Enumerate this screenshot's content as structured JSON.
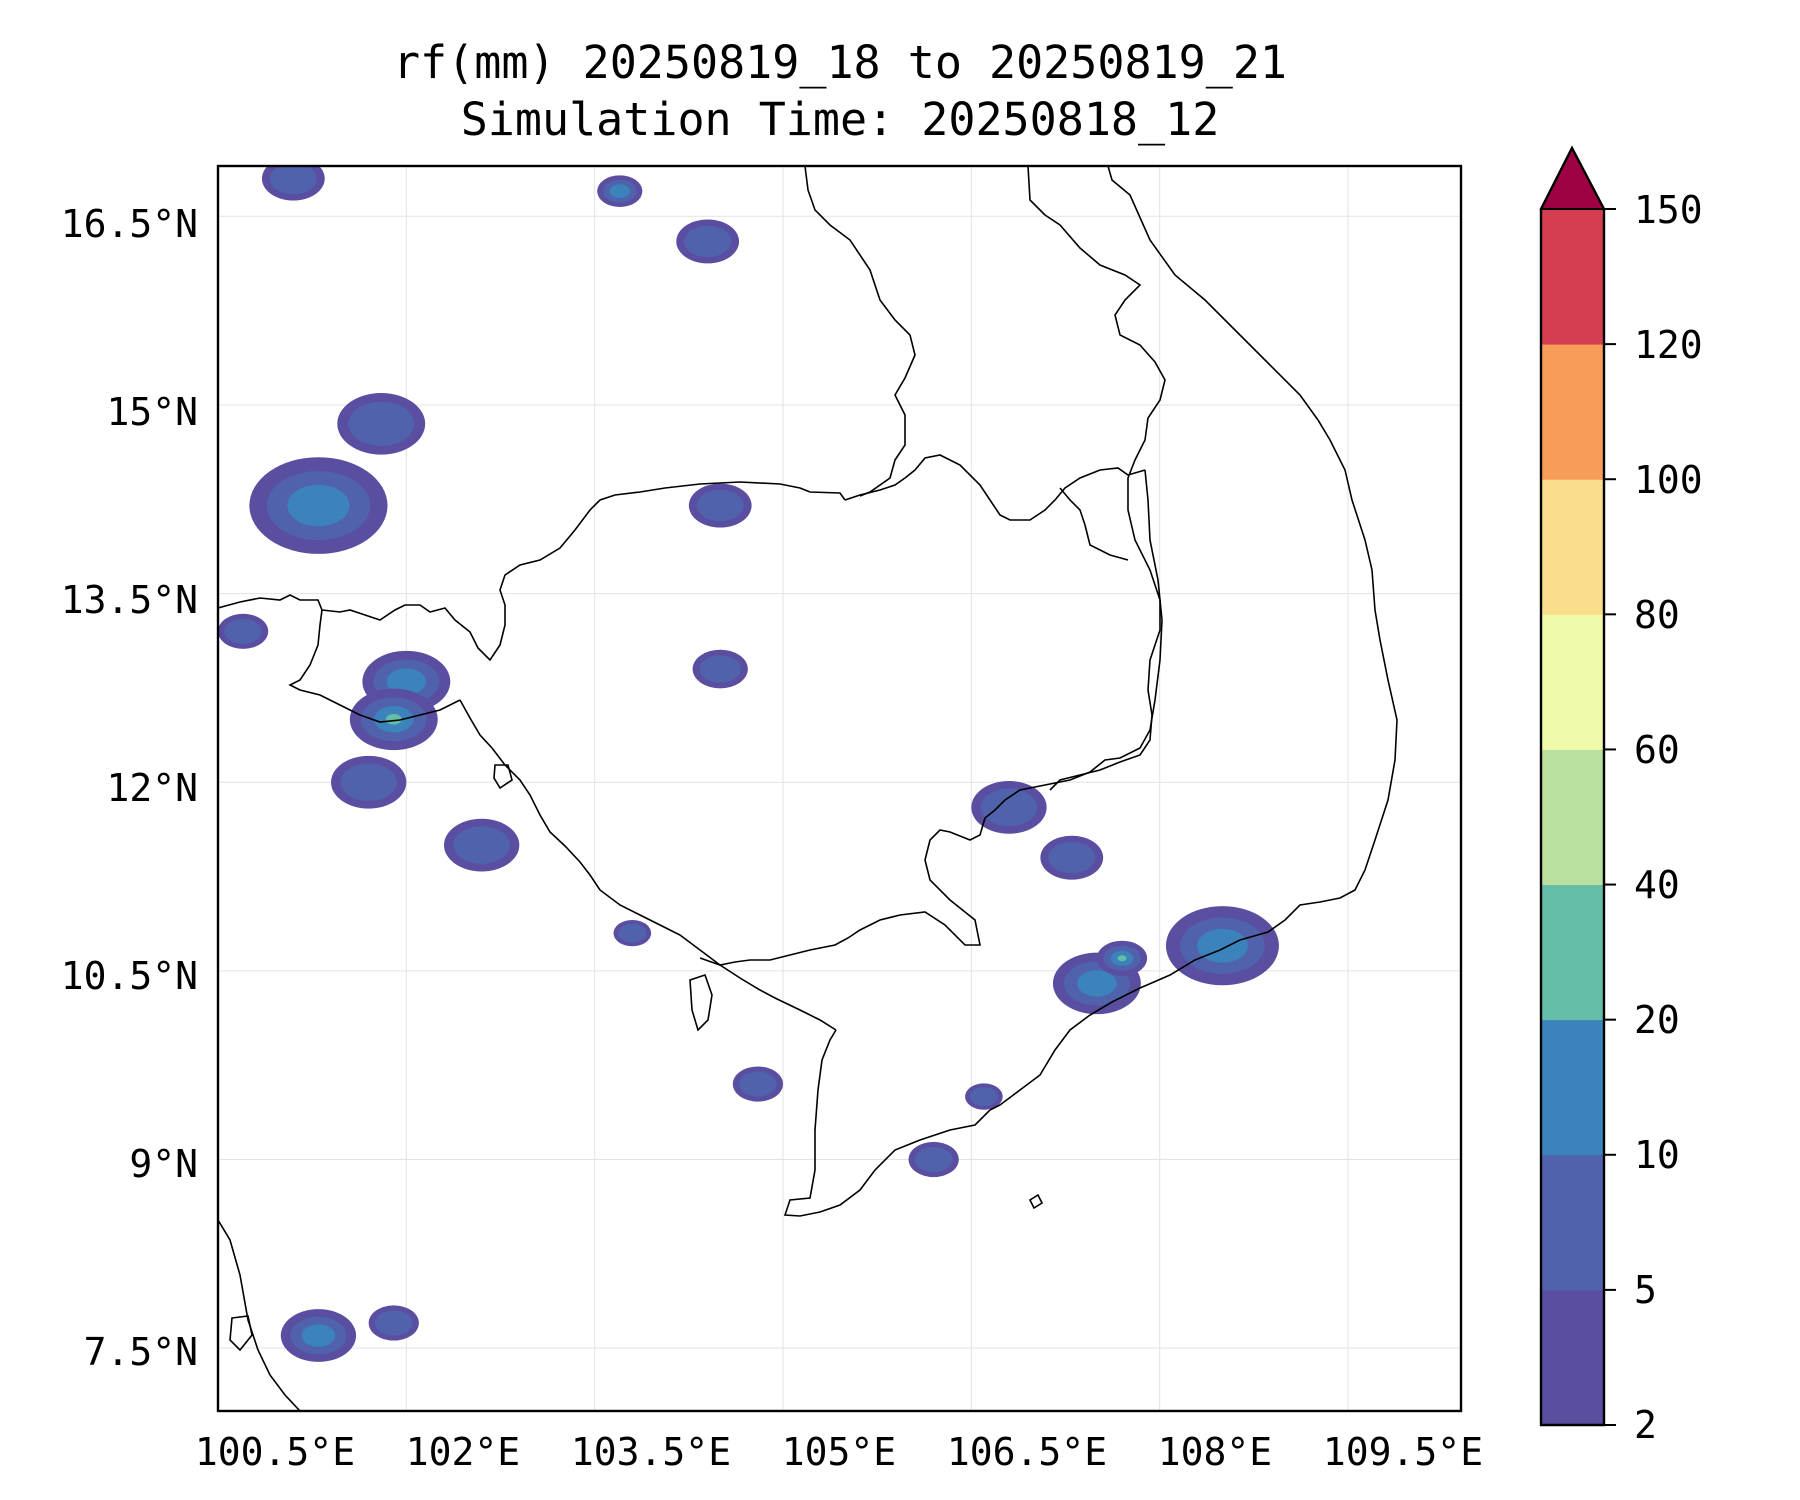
{
  "title": {
    "line1": "rf(mm) 20250819_18 to 20250819_21",
    "line2": "Simulation Time: 20250818_12"
  },
  "map": {
    "lon_ticks": [
      "100.5°E",
      "102°E",
      "103.5°E",
      "105°E",
      "106.5°E",
      "108°E",
      "109.5°E"
    ],
    "lat_ticks": [
      "16.5°N",
      "15°N",
      "13.5°N",
      "12°N",
      "10.5°N",
      "9°N",
      "7.5°N"
    ],
    "extent": {
      "lon_min": 100.5,
      "lon_max": 110.4,
      "lat_min": 7.0,
      "lat_max": 16.9
    },
    "gridlines": true
  },
  "colorbar": {
    "levels": [
      "2",
      "5",
      "10",
      "20",
      "40",
      "60",
      "80",
      "100",
      "120",
      "150"
    ],
    "colors": [
      "#5a4ea1",
      "#4f62ab",
      "#3c82bc",
      "#63bda7",
      "#b9e09f",
      "#f1f9aa",
      "#fbde8b",
      "#f89c59",
      "#d43e4f",
      "#9e0142"
    ],
    "extend": "max"
  },
  "chart_data": {
    "type": "heatmap",
    "title": "rf(mm) 20250819_18 to 20250819_21 / Simulation Time: 20250818_12",
    "xlabel": "",
    "ylabel": "",
    "xlim": [
      100.5,
      110.4
    ],
    "ylim": [
      7.0,
      16.9
    ],
    "x_ticks": [
      "100.5°E",
      "102°E",
      "103.5°E",
      "105°E",
      "106.5°E",
      "108°E",
      "109.5°E"
    ],
    "y_ticks": [
      "16.5°N",
      "15°N",
      "13.5°N",
      "12°N",
      "10.5°N",
      "9°N",
      "7.5°N"
    ],
    "colorbar_levels": [
      2,
      5,
      10,
      20,
      40,
      60,
      80,
      100,
      120,
      150
    ],
    "rain_cells": [
      {
        "lon": 101.3,
        "lat": 14.2,
        "r": 0.55,
        "value": 12
      },
      {
        "lon": 101.8,
        "lat": 14.85,
        "r": 0.35,
        "value": 6
      },
      {
        "lon": 102.0,
        "lat": 12.8,
        "r": 0.35,
        "value": 12
      },
      {
        "lon": 101.9,
        "lat": 12.5,
        "r": 0.35,
        "value": 22
      },
      {
        "lon": 101.7,
        "lat": 12.0,
        "r": 0.3,
        "value": 6
      },
      {
        "lon": 102.6,
        "lat": 11.5,
        "r": 0.3,
        "value": 7
      },
      {
        "lon": 100.7,
        "lat": 13.2,
        "r": 0.2,
        "value": 6
      },
      {
        "lon": 104.4,
        "lat": 16.3,
        "r": 0.25,
        "value": 6
      },
      {
        "lon": 103.7,
        "lat": 16.7,
        "r": 0.18,
        "value": 12
      },
      {
        "lon": 104.5,
        "lat": 12.9,
        "r": 0.22,
        "value": 6
      },
      {
        "lon": 104.5,
        "lat": 14.2,
        "r": 0.25,
        "value": 6
      },
      {
        "lon": 106.8,
        "lat": 11.8,
        "r": 0.3,
        "value": 6
      },
      {
        "lon": 107.3,
        "lat": 11.4,
        "r": 0.25,
        "value": 6
      },
      {
        "lon": 107.5,
        "lat": 10.4,
        "r": 0.35,
        "value": 12
      },
      {
        "lon": 108.5,
        "lat": 10.7,
        "r": 0.45,
        "value": 12
      },
      {
        "lon": 107.7,
        "lat": 10.6,
        "r": 0.2,
        "value": 22
      },
      {
        "lon": 106.2,
        "lat": 9.0,
        "r": 0.2,
        "value": 6
      },
      {
        "lon": 106.6,
        "lat": 9.5,
        "r": 0.15,
        "value": 6
      },
      {
        "lon": 101.3,
        "lat": 7.6,
        "r": 0.3,
        "value": 12
      },
      {
        "lon": 101.9,
        "lat": 7.7,
        "r": 0.2,
        "value": 6
      },
      {
        "lon": 103.8,
        "lat": 10.8,
        "r": 0.15,
        "value": 6
      },
      {
        "lon": 104.8,
        "lat": 9.6,
        "r": 0.2,
        "value": 6
      },
      {
        "lon": 101.1,
        "lat": 16.8,
        "r": 0.25,
        "value": 6
      }
    ]
  }
}
